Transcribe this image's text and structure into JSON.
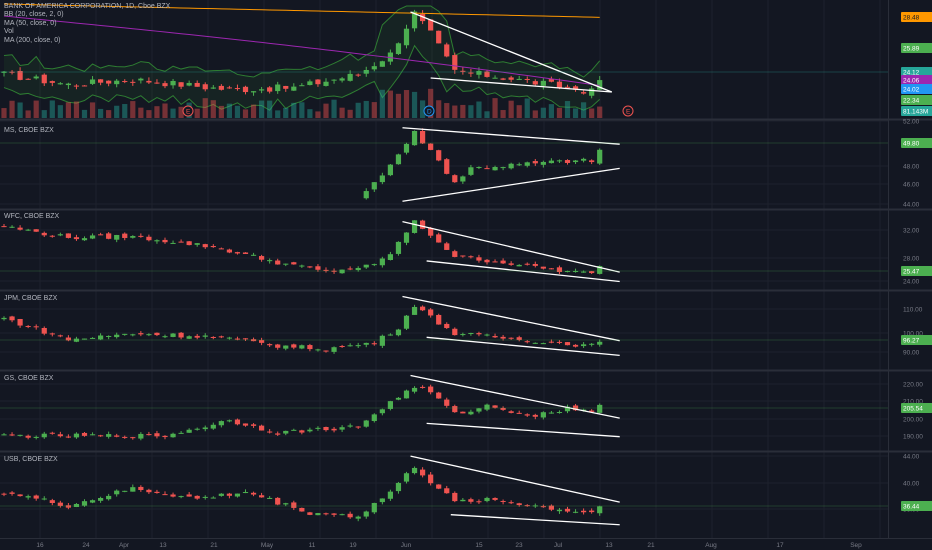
{
  "colors": {
    "background": "#131722",
    "grid": "#1e222d",
    "up": "#26a69a",
    "up_candle": "#4caf50",
    "down": "#ef5350",
    "trendline": "#ffffff",
    "bb_band": "#2e7d32",
    "ma50": "#9c27b0",
    "ma200": "#ff9800"
  },
  "legend": {
    "title": "BANK OF AMERICA CORPORATION, 1D, Cboe BZX",
    "indicators": [
      "BB (20, close, 2, 0)",
      "MA (50, close, 0)",
      "Vol",
      "MA (200, close, 0)"
    ]
  },
  "events": [
    "E",
    "D",
    "E"
  ],
  "x_axis": {
    "labels": [
      "16",
      "24",
      "Apr",
      "13",
      "21",
      "May",
      "11",
      "19",
      "Jun",
      "15",
      "23",
      "Jul",
      "13",
      "21",
      "Aug",
      "17",
      "Sep"
    ]
  },
  "chart_data": [
    {
      "type": "candlestick",
      "name": "BANK OF AMERICA CORPORATION, 1D, Cboe BZX",
      "y_ticks": [],
      "price_tags": [
        {
          "value": "28.48",
          "color": "#ff9800"
        },
        {
          "value": "25.89",
          "color": "#4caf50"
        },
        {
          "value": "24.12",
          "color": "#26a69a"
        },
        {
          "value": "24.06",
          "color": "#9c27b0"
        },
        {
          "value": "24.02",
          "color": "#2196f3"
        },
        {
          "value": "22.34",
          "color": "#4caf50"
        },
        {
          "value": "81.143M",
          "color": "#26a69a"
        }
      ],
      "ylim": [
        19,
        31
      ]
    },
    {
      "type": "candlestick",
      "name": "MS, CBOE BZX",
      "y_ticks": [
        "52.00",
        "48.00",
        "46.00",
        "44.00"
      ],
      "price_tags": [
        {
          "value": "49.80",
          "color": "#4caf50"
        }
      ],
      "ylim": [
        43.5,
        52.5
      ],
      "last_value": 49.8,
      "trendlines": [
        [
          [
            49.5,
            51.8
          ],
          [
            74,
            50.1
          ]
        ],
        [
          [
            49.5,
            44.2
          ],
          [
            74,
            47.6
          ]
        ]
      ]
    },
    {
      "type": "candlestick",
      "name": "WFC, CBOE BZX",
      "y_ticks": [
        "32.00",
        "28.00",
        "24.00"
      ],
      "price_tags": [
        {
          "value": "25.47",
          "color": "#4caf50"
        }
      ],
      "ylim": [
        22.5,
        35
      ],
      "last_value": 25.47,
      "trendlines": [
        [
          [
            49.5,
            33.3
          ],
          [
            74,
            25.2
          ]
        ],
        [
          [
            52.5,
            27.0
          ],
          [
            74,
            23.7
          ]
        ]
      ]
    },
    {
      "type": "candlestick",
      "name": "JPM, CBOE BZX",
      "y_ticks": [
        "110.00",
        "100.00",
        "90.00"
      ],
      "price_tags": [
        {
          "value": "96.27",
          "color": "#4caf50"
        }
      ],
      "ylim": [
        85,
        119
      ],
      "last_value": 96.27,
      "trendlines": [
        [
          [
            49.5,
            117
          ],
          [
            74,
            97.5
          ]
        ],
        [
          [
            52.5,
            99
          ],
          [
            74,
            91
          ]
        ]
      ]
    },
    {
      "type": "candlestick",
      "name": "GS, CBOE BZX",
      "y_ticks": [
        "220.00",
        "210.00",
        "200.00",
        "190.00"
      ],
      "price_tags": [
        {
          "value": "205.54",
          "color": "#4caf50"
        }
      ],
      "ylim": [
        182,
        226
      ],
      "last_value": 205.54,
      "trendlines": [
        [
          [
            50.5,
            224
          ],
          [
            74,
            200
          ]
        ],
        [
          [
            52.5,
            197
          ],
          [
            74,
            189.5
          ]
        ]
      ]
    },
    {
      "type": "candlestick",
      "name": "USB, CBOE BZX",
      "y_ticks": [
        "44.00",
        "40.00",
        "36.00"
      ],
      "price_tags": [
        {
          "value": "36.44",
          "color": "#4caf50"
        }
      ],
      "ylim": [
        31.5,
        45
      ],
      "last_value": 36.44,
      "trendlines": [
        [
          [
            50.5,
            44.5
          ],
          [
            74,
            37.2
          ]
        ],
        [
          [
            55.5,
            35.2
          ],
          [
            74,
            33.6
          ]
        ]
      ]
    }
  ]
}
